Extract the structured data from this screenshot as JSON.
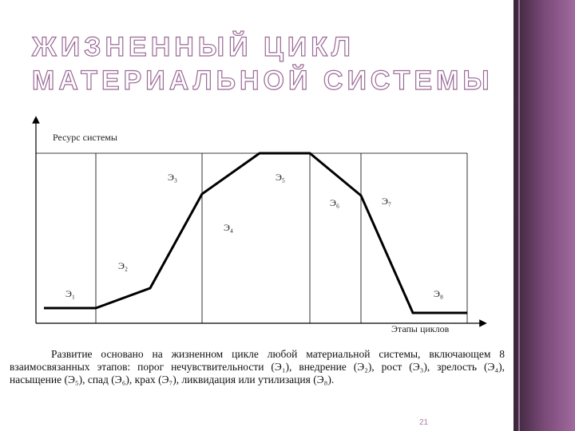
{
  "header": {
    "title_lines": [
      "ЖИЗНЕННЫЙ ЦИКЛ",
      "МАТЕРИАЛЬНОЙ СИСТЕМЫ"
    ]
  },
  "diagram": {
    "y_axis_label": "Ресурс системы",
    "x_axis_label": "Этапы циклов",
    "stages": [
      "Э₁",
      "Э₂",
      "Э₃",
      "Э₄",
      "Э₅",
      "Э₆",
      "Э₇",
      "Э₈"
    ]
  },
  "caption": "Развитие основано на жизненном цикле любой материальной системы, включающем 8 взаимосвязанных этапов: порог нечувствительности (Э₁), внедрение (Э₂), рост (Э₃), зрелость (Э₄), насыщение (Э₅), спад (Э₆), крах (Э₇), ликвидация или утилизация (Э₈).",
  "page_number": "21"
}
